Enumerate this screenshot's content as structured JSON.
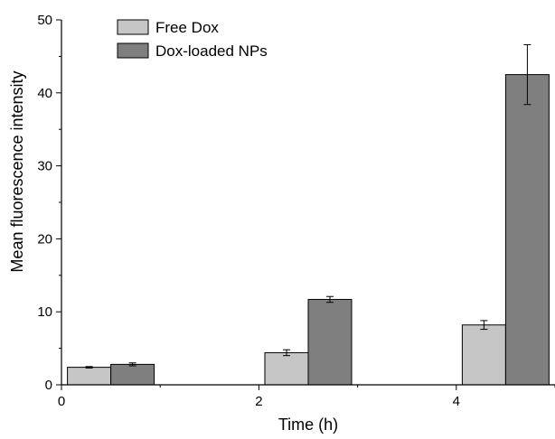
{
  "chart_data": {
    "type": "bar",
    "title": "",
    "xlabel": "Time (h)",
    "ylabel": "Mean fluorescence intensity",
    "xlim": [
      0,
      5
    ],
    "ylim": [
      0,
      50
    ],
    "categories": [
      "0.5",
      "2.5",
      "4.5"
    ],
    "x_ticks": [
      "0",
      "2",
      "4"
    ],
    "y_ticks": [
      "0",
      "10",
      "20",
      "30",
      "40",
      "50"
    ],
    "series": [
      {
        "name": "Free Dox",
        "color": "#c6c6c6",
        "values": [
          2.4,
          4.4,
          8.2
        ],
        "errors": [
          0.1,
          0.4,
          0.6
        ]
      },
      {
        "name": "Dox-loaded NPs",
        "color": "#7f7f7f",
        "values": [
          2.8,
          11.7,
          42.5
        ],
        "errors": [
          0.2,
          0.4,
          4.1
        ]
      }
    ],
    "grid": false,
    "legend": "top-left"
  }
}
